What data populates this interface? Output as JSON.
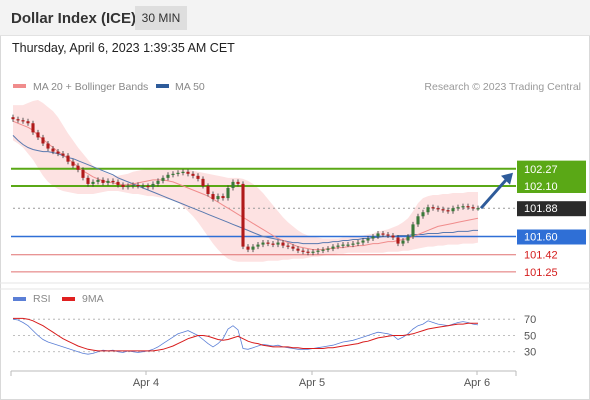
{
  "header": {
    "title": "Dollar Index (ICE)",
    "interval": "30 MIN"
  },
  "datetime": "Thursday, April 6, 2023 1:39:35 AM CET",
  "legend": {
    "items": [
      {
        "label": "MA 20 + Bollinger Bands",
        "color": "#f08c8c"
      },
      {
        "label": "MA 50",
        "color": "#2e5b9a"
      }
    ],
    "credit": "Research © 2023 Trading Central"
  },
  "rsi_legend": {
    "items": [
      {
        "label": "RSI",
        "color": "#5b7fd6"
      },
      {
        "label": "9MA",
        "color": "#e02020"
      }
    ]
  },
  "colors": {
    "up_candle": "#3a7a3a",
    "down_candle": "#b01a1a",
    "resistance": "#5aa816",
    "pivot": "#2f6fd6",
    "support": "#e07070",
    "bollinger_fill": "#fde2e2",
    "ma20": "#f08c8c",
    "ma50": "#5a7ab0",
    "rsi_line": "#5b7fd6",
    "rsi_ma": "#d81c1c",
    "arrow": "#2e5b9a"
  },
  "chart_data": [
    {
      "type": "candlestick",
      "title": "Dollar Index (ICE)",
      "x_tick_labels": [
        "Apr 4",
        "Apr 5",
        "Apr 6"
      ],
      "ylim": [
        101.18,
        102.32
      ],
      "levels": [
        {
          "value": 102.27,
          "label": "102.27",
          "kind": "resistance"
        },
        {
          "value": 102.1,
          "label": "102.10",
          "kind": "resistance"
        },
        {
          "value": 101.88,
          "label": "101.88",
          "kind": "last"
        },
        {
          "value": 101.6,
          "label": "101.60",
          "kind": "pivot"
        },
        {
          "value": 101.42,
          "label": "101.42",
          "kind": "support"
        },
        {
          "value": 101.25,
          "label": "101.25",
          "kind": "support"
        }
      ],
      "close": [
        102.76,
        102.75,
        102.74,
        102.72,
        102.63,
        102.58,
        102.52,
        102.47,
        102.44,
        102.42,
        102.4,
        102.34,
        102.3,
        102.26,
        102.18,
        102.12,
        102.14,
        102.16,
        102.13,
        102.15,
        102.14,
        102.11,
        102.09,
        102.1,
        102.11,
        102.1,
        102.1,
        102.09,
        102.12,
        102.15,
        102.18,
        102.21,
        102.22,
        102.23,
        102.24,
        102.22,
        102.2,
        102.17,
        102.1,
        102.02,
        101.97,
        102.0,
        101.98,
        102.08,
        102.14,
        102.12,
        101.5,
        101.47,
        101.5,
        101.52,
        101.54,
        101.53,
        101.52,
        101.54,
        101.51,
        101.5,
        101.48,
        101.46,
        101.45,
        101.44,
        101.45,
        101.46,
        101.47,
        101.48,
        101.5,
        101.51,
        101.52,
        101.52,
        101.53,
        101.54,
        101.56,
        101.58,
        101.6,
        101.63,
        101.62,
        101.61,
        101.59,
        101.53,
        101.56,
        101.6,
        101.72,
        101.8,
        101.84,
        101.89,
        101.88,
        101.87,
        101.86,
        101.85,
        101.88,
        101.89,
        101.9,
        101.89,
        101.88,
        101.88
      ],
      "ma20": [
        102.74,
        102.72,
        102.7,
        102.68,
        102.65,
        102.6,
        102.56,
        102.52,
        102.48,
        102.44,
        102.41,
        102.37,
        102.33,
        102.29,
        102.25,
        102.22,
        102.19,
        102.17,
        102.15,
        102.14,
        102.13,
        102.12,
        102.11,
        102.11,
        102.12,
        102.13,
        102.14,
        102.15,
        102.16,
        102.16,
        102.16,
        102.15,
        102.14,
        102.12,
        102.1,
        102.08,
        102.06,
        102.04,
        102.02,
        102.0,
        101.97,
        101.94,
        101.91,
        101.88,
        101.85,
        101.82,
        101.79,
        101.76,
        101.73,
        101.7,
        101.67,
        101.64,
        101.61,
        101.58,
        101.56,
        101.54,
        101.52,
        101.5,
        101.49,
        101.48,
        101.47,
        101.47,
        101.47,
        101.48,
        101.48,
        101.49,
        101.49,
        101.5,
        101.5,
        101.51,
        101.51,
        101.52,
        101.53,
        101.53,
        101.54,
        101.55,
        101.55,
        101.56,
        101.57,
        101.58,
        101.6,
        101.62,
        101.64,
        101.66,
        101.68,
        101.7,
        101.71,
        101.72,
        101.73,
        101.74,
        101.75,
        101.76,
        101.77,
        101.78
      ],
      "ma50": [
        102.6,
        102.55,
        102.51,
        102.48,
        102.46,
        102.45,
        102.44,
        102.44,
        102.43,
        102.42,
        102.4,
        102.38,
        102.37,
        102.35,
        102.33,
        102.31,
        102.29,
        102.27,
        102.25,
        102.23,
        102.21,
        102.18,
        102.16,
        102.14,
        102.12,
        102.1,
        102.08,
        102.06,
        102.04,
        102.02,
        102.0,
        101.98,
        101.96,
        101.94,
        101.92,
        101.9,
        101.88,
        101.86,
        101.84,
        101.82,
        101.8,
        101.78,
        101.76,
        101.74,
        101.72,
        101.7,
        101.68,
        101.66,
        101.64,
        101.62,
        101.6,
        101.59,
        101.58,
        101.57,
        101.56,
        101.55,
        101.54,
        101.54,
        101.53,
        101.53,
        101.53,
        101.53,
        101.54,
        101.54,
        101.55,
        101.55,
        101.56,
        101.56,
        101.57,
        101.57,
        101.58,
        101.58,
        101.59,
        101.59,
        101.6,
        101.6,
        101.6,
        101.61,
        101.61,
        101.61,
        101.62,
        101.62,
        101.62,
        101.63,
        101.63,
        101.63,
        101.64,
        101.64,
        101.64,
        101.65,
        101.65,
        101.65,
        101.66,
        101.66
      ],
      "bollinger_upper": [
        102.9,
        102.9,
        102.9,
        102.92,
        102.94,
        102.95,
        102.92,
        102.88,
        102.84,
        102.78,
        102.7,
        102.62,
        102.55,
        102.48,
        102.42,
        102.36,
        102.3,
        102.26,
        102.24,
        102.22,
        102.2,
        102.2,
        102.21,
        102.22,
        102.24,
        102.25,
        102.26,
        102.27,
        102.27,
        102.28,
        102.28,
        102.28,
        102.28,
        102.28,
        102.27,
        102.26,
        102.25,
        102.24,
        102.23,
        102.22,
        102.21,
        102.2,
        102.19,
        102.18,
        102.18,
        102.18,
        102.17,
        102.15,
        102.12,
        102.08,
        102.03,
        101.97,
        101.91,
        101.85,
        101.79,
        101.74,
        101.7,
        101.66,
        101.63,
        101.61,
        101.6,
        101.59,
        101.58,
        101.58,
        101.58,
        101.58,
        101.59,
        101.59,
        101.6,
        101.6,
        101.61,
        101.62,
        101.63,
        101.65,
        101.66,
        101.67,
        101.69,
        101.71,
        101.74,
        101.78,
        101.85,
        101.93,
        101.98,
        102.0,
        102.01,
        102.01,
        102.02,
        102.02,
        102.03,
        102.03,
        102.03,
        102.04,
        102.04,
        102.04
      ],
      "bollinger_lower": [
        102.55,
        102.52,
        102.48,
        102.42,
        102.36,
        102.28,
        102.2,
        102.14,
        102.1,
        102.07,
        102.05,
        102.04,
        102.03,
        102.02,
        102.02,
        102.02,
        102.02,
        102.03,
        102.04,
        102.05,
        102.05,
        102.05,
        102.04,
        102.03,
        102.02,
        102.02,
        102.01,
        102.0,
        102.0,
        101.99,
        101.98,
        101.97,
        101.96,
        101.94,
        101.9,
        101.85,
        101.8,
        101.74,
        101.67,
        101.6,
        101.53,
        101.47,
        101.42,
        101.38,
        101.36,
        101.35,
        101.35,
        101.35,
        101.35,
        101.35,
        101.35,
        101.36,
        101.36,
        101.36,
        101.37,
        101.37,
        101.38,
        101.38,
        101.38,
        101.39,
        101.4,
        101.4,
        101.41,
        101.42,
        101.42,
        101.43,
        101.43,
        101.44,
        101.44,
        101.44,
        101.44,
        101.44,
        101.44,
        101.44,
        101.44,
        101.45,
        101.45,
        101.45,
        101.46,
        101.46,
        101.47,
        101.48,
        101.49,
        101.5,
        101.5,
        101.51,
        101.51,
        101.52,
        101.52,
        101.52,
        101.53,
        101.53,
        101.53,
        101.54
      ]
    },
    {
      "type": "line",
      "title": "RSI",
      "y_tick_labels": [
        "70",
        "50",
        "30"
      ],
      "ylim": [
        10,
        85
      ],
      "series": [
        {
          "name": "RSI",
          "values": [
            70,
            69,
            66,
            62,
            56,
            50,
            45,
            42,
            40,
            38,
            36,
            34,
            32,
            30,
            28,
            27,
            28,
            30,
            32,
            31,
            32,
            30,
            29,
            31,
            30,
            29,
            30,
            31,
            33,
            36,
            40,
            44,
            48,
            52,
            54,
            56,
            53,
            50,
            45,
            40,
            36,
            40,
            46,
            58,
            62,
            57,
            34,
            33,
            35,
            37,
            39,
            38,
            37,
            38,
            36,
            35,
            34,
            33,
            33,
            33,
            34,
            35,
            36,
            37,
            38,
            40,
            42,
            43,
            44,
            46,
            48,
            50,
            52,
            54,
            53,
            52,
            50,
            45,
            48,
            52,
            58,
            62,
            64,
            68,
            66,
            64,
            63,
            62,
            64,
            66,
            67,
            66,
            64,
            63
          ]
        },
        {
          "name": "9MA",
          "values": [
            71,
            71,
            71,
            70,
            68,
            65,
            62,
            58,
            54,
            50,
            46,
            43,
            40,
            37,
            35,
            33,
            32,
            31,
            31,
            31,
            31,
            31,
            31,
            31,
            31,
            31,
            31,
            31,
            31,
            32,
            33,
            35,
            37,
            40,
            43,
            46,
            48,
            50,
            50,
            49,
            47,
            45,
            44,
            45,
            47,
            49,
            46,
            43,
            41,
            40,
            38,
            37,
            36,
            36,
            36,
            36,
            35,
            35,
            34,
            34,
            34,
            34,
            34,
            35,
            35,
            36,
            37,
            38,
            39,
            40,
            42,
            43,
            45,
            47,
            48,
            49,
            50,
            50,
            50,
            51,
            52,
            54,
            56,
            58,
            59,
            60,
            61,
            62,
            63,
            64,
            64,
            65,
            65,
            65
          ]
        }
      ]
    }
  ]
}
